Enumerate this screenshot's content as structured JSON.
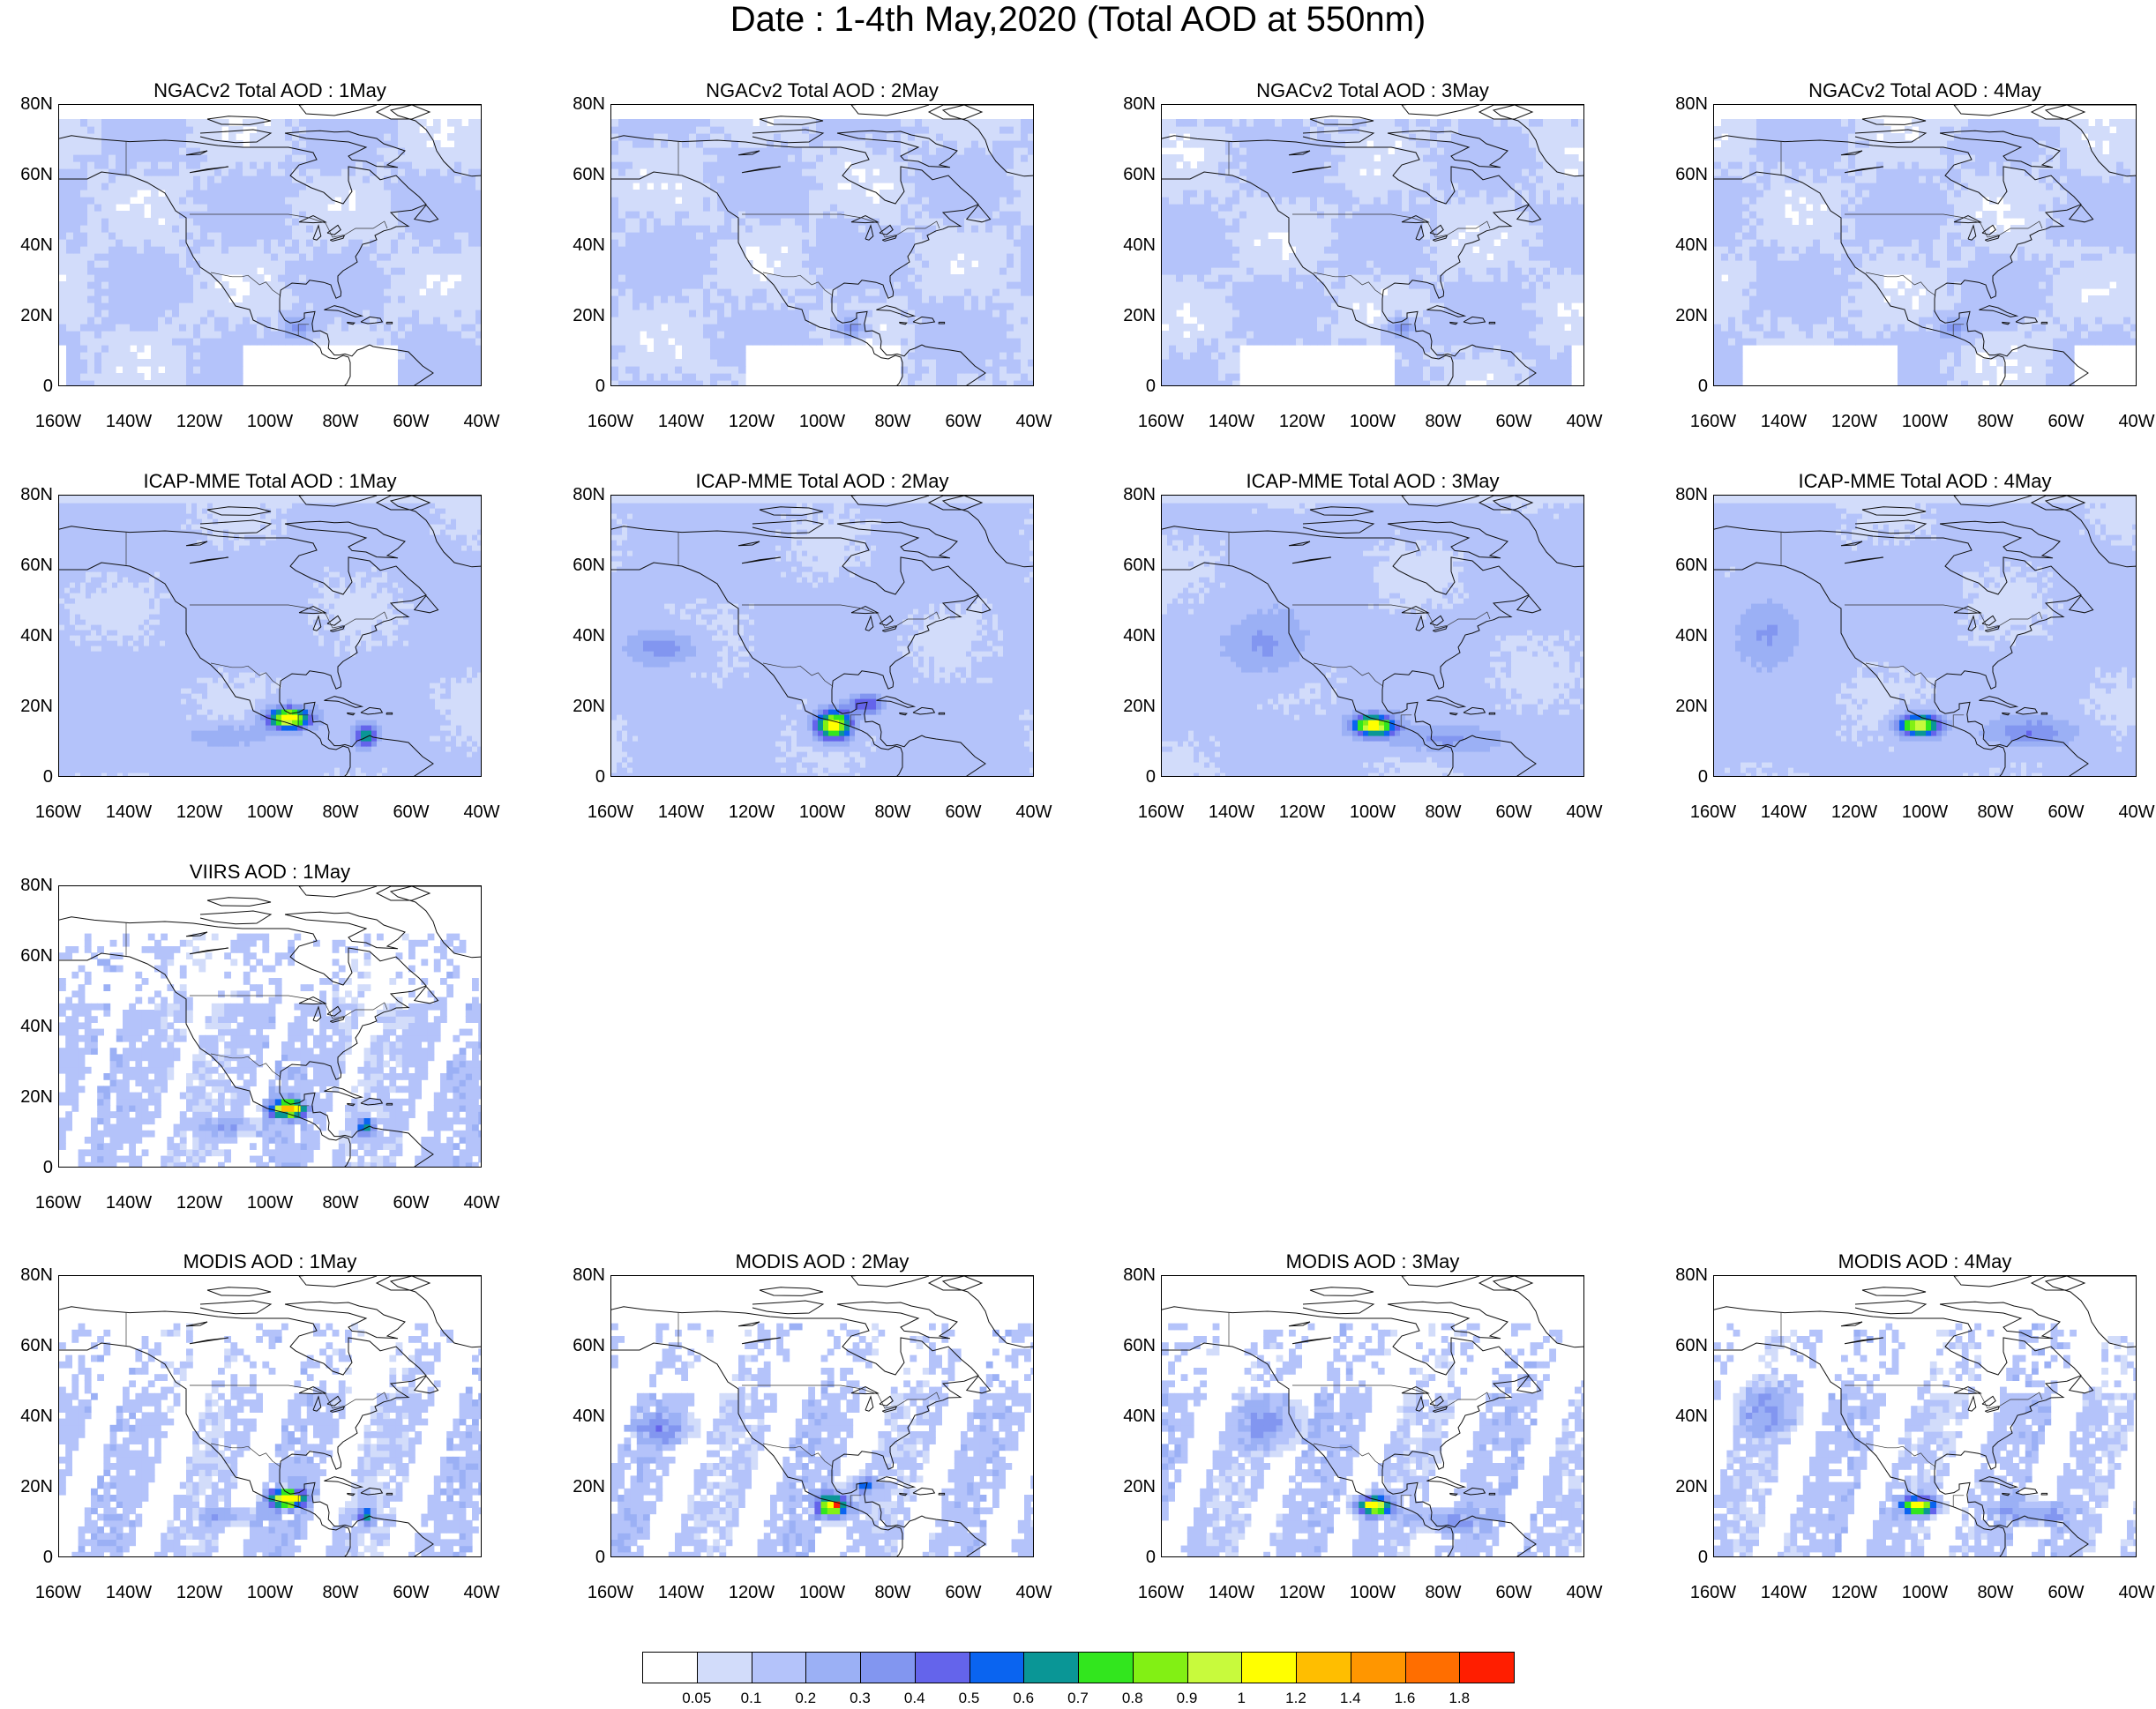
{
  "figure": {
    "title": "Date : 1-4th May,2020 (Total AOD at 550nm)"
  },
  "axes": {
    "lat_ticks": [
      "80N",
      "60N",
      "40N",
      "20N",
      "0"
    ],
    "lon_ticks": [
      "160W",
      "140W",
      "120W",
      "100W",
      "80W",
      "60W",
      "40W"
    ],
    "lat_range": [
      0,
      80
    ],
    "lon_range": [
      -160,
      -40
    ]
  },
  "panels": [
    {
      "title": "NGACv2 Total AOD : 1May",
      "product": "NGACv2",
      "day": 1
    },
    {
      "title": "NGACv2 Total AOD : 2May",
      "product": "NGACv2",
      "day": 2
    },
    {
      "title": "NGACv2 Total AOD : 3May",
      "product": "NGACv2",
      "day": 3
    },
    {
      "title": "NGACv2 Total AOD : 4May",
      "product": "NGACv2",
      "day": 4
    },
    {
      "title": "ICAP-MME Total AOD : 1May",
      "product": "ICAP-MME",
      "day": 1
    },
    {
      "title": "ICAP-MME Total AOD : 2May",
      "product": "ICAP-MME",
      "day": 2
    },
    {
      "title": "ICAP-MME Total AOD : 3May",
      "product": "ICAP-MME",
      "day": 3
    },
    {
      "title": "ICAP-MME Total AOD : 4May",
      "product": "ICAP-MME",
      "day": 4
    },
    {
      "title": "VIIRS AOD : 1May",
      "product": "VIIRS",
      "day": 1
    },
    {
      "title": "MODIS AOD : 1May",
      "product": "MODIS",
      "day": 1
    },
    {
      "title": "MODIS AOD : 2May",
      "product": "MODIS",
      "day": 2
    },
    {
      "title": "MODIS AOD : 3May",
      "product": "MODIS",
      "day": 3
    },
    {
      "title": "MODIS AOD : 4May",
      "product": "MODIS",
      "day": 4
    }
  ],
  "colorbar": {
    "labels": [
      "0.05",
      "0.1",
      "0.2",
      "0.3",
      "0.4",
      "0.5",
      "0.6",
      "0.7",
      "0.8",
      "0.9",
      "1",
      "1.2",
      "1.4",
      "1.6",
      "1.8"
    ],
    "colors": [
      "#ffffff",
      "#d2dcfa",
      "#b4c3fa",
      "#9bb0f5",
      "#8296f0",
      "#6464eb",
      "#0a64f0",
      "#0a9696",
      "#32e61e",
      "#82f014",
      "#c8fa3c",
      "#ffff00",
      "#ffbe00",
      "#ff9600",
      "#ff6e00",
      "#ff1e00"
    ]
  }
}
